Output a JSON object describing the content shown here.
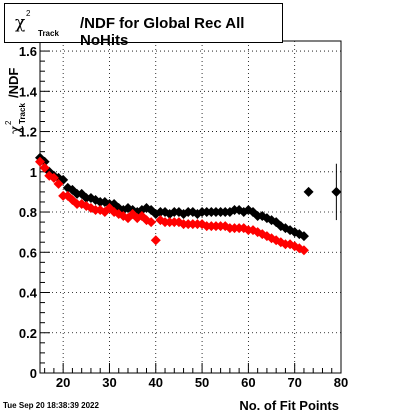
{
  "chart_data": {
    "type": "scatter",
    "title": {
      "symbol": "χ",
      "superscript": "2",
      "subscript": "Track",
      "text": "/NDF for Global Rec All NoHits"
    },
    "ylabel": {
      "symbol": "χ",
      "superscript": "2",
      "subscript": "Track",
      "text": "/NDF"
    },
    "xlabel": "No. of Fit Points",
    "timestamp": "Tue Sep 20 18:38:39 2022",
    "xlim": [
      15,
      80
    ],
    "ylim": [
      0,
      1.65
    ],
    "x_major_ticks": [
      20,
      30,
      40,
      50,
      60,
      70,
      80
    ],
    "x_minor_step": 2,
    "y_major_ticks": [
      0,
      0.2,
      0.4,
      0.6,
      0.8,
      1,
      1.2,
      1.4,
      1.6
    ],
    "y_minor_step": 0.05,
    "x_tick_labels": [
      "20",
      "30",
      "40",
      "50",
      "60",
      "70",
      "80"
    ],
    "y_tick_labels": [
      "0",
      "0.2",
      "0.4",
      "0.6",
      "0.8",
      "1",
      "1.2",
      "1.4",
      "1.6"
    ],
    "grid": true,
    "marker": "diamond",
    "series": [
      {
        "color": "#000000",
        "points": [
          [
            15,
            1.07
          ],
          [
            16,
            1.05
          ],
          [
            17,
            1.0
          ],
          [
            18,
            0.98
          ],
          [
            19,
            0.97
          ],
          [
            20,
            0.96
          ],
          [
            21,
            0.92
          ],
          [
            22,
            0.91
          ],
          [
            23,
            0.89
          ],
          [
            24,
            0.89
          ],
          [
            25,
            0.87
          ],
          [
            26,
            0.87
          ],
          [
            27,
            0.86
          ],
          [
            28,
            0.85
          ],
          [
            29,
            0.85
          ],
          [
            30,
            0.84
          ],
          [
            31,
            0.84
          ],
          [
            32,
            0.82
          ],
          [
            33,
            0.81
          ],
          [
            34,
            0.82
          ],
          [
            35,
            0.81
          ],
          [
            36,
            0.8
          ],
          [
            37,
            0.81
          ],
          [
            38,
            0.82
          ],
          [
            39,
            0.81
          ],
          [
            40,
            0.79
          ],
          [
            41,
            0.8
          ],
          [
            42,
            0.8
          ],
          [
            43,
            0.79
          ],
          [
            44,
            0.8
          ],
          [
            45,
            0.8
          ],
          [
            46,
            0.79
          ],
          [
            47,
            0.8
          ],
          [
            48,
            0.8
          ],
          [
            49,
            0.79
          ],
          [
            50,
            0.8
          ],
          [
            51,
            0.8
          ],
          [
            52,
            0.8
          ],
          [
            53,
            0.8
          ],
          [
            54,
            0.8
          ],
          [
            55,
            0.8
          ],
          [
            56,
            0.8
          ],
          [
            57,
            0.81
          ],
          [
            58,
            0.81
          ],
          [
            59,
            0.8
          ],
          [
            60,
            0.81
          ],
          [
            61,
            0.8
          ],
          [
            62,
            0.78
          ],
          [
            63,
            0.78
          ],
          [
            64,
            0.77
          ],
          [
            65,
            0.76
          ],
          [
            66,
            0.75
          ],
          [
            67,
            0.73
          ],
          [
            68,
            0.72
          ],
          [
            69,
            0.71
          ],
          [
            70,
            0.7
          ],
          [
            71,
            0.69
          ],
          [
            72,
            0.68
          ],
          [
            73,
            0.9
          ],
          [
            79,
            0.9
          ]
        ],
        "error_bars": [
          {
            "x": 79,
            "y": 0.9,
            "low": 0.76,
            "high": 1.04
          }
        ]
      },
      {
        "color": "#ff0000",
        "points": [
          [
            15,
            1.05
          ],
          [
            16,
            1.02
          ],
          [
            17,
            0.98
          ],
          [
            18,
            0.97
          ],
          [
            19,
            0.94
          ],
          [
            20,
            0.88
          ],
          [
            21,
            0.88
          ],
          [
            22,
            0.86
          ],
          [
            23,
            0.84
          ],
          [
            24,
            0.84
          ],
          [
            25,
            0.83
          ],
          [
            26,
            0.82
          ],
          [
            27,
            0.81
          ],
          [
            28,
            0.81
          ],
          [
            29,
            0.8
          ],
          [
            30,
            0.82
          ],
          [
            31,
            0.8
          ],
          [
            32,
            0.79
          ],
          [
            33,
            0.78
          ],
          [
            34,
            0.77
          ],
          [
            35,
            0.79
          ],
          [
            36,
            0.77
          ],
          [
            37,
            0.78
          ],
          [
            38,
            0.76
          ],
          [
            39,
            0.75
          ],
          [
            40,
            0.66
          ],
          [
            41,
            0.76
          ],
          [
            42,
            0.75
          ],
          [
            43,
            0.75
          ],
          [
            44,
            0.75
          ],
          [
            45,
            0.75
          ],
          [
            46,
            0.74
          ],
          [
            47,
            0.74
          ],
          [
            48,
            0.74
          ],
          [
            49,
            0.74
          ],
          [
            50,
            0.74
          ],
          [
            51,
            0.73
          ],
          [
            52,
            0.73
          ],
          [
            53,
            0.73
          ],
          [
            54,
            0.73
          ],
          [
            55,
            0.73
          ],
          [
            56,
            0.72
          ],
          [
            57,
            0.72
          ],
          [
            58,
            0.72
          ],
          [
            59,
            0.72
          ],
          [
            60,
            0.71
          ],
          [
            61,
            0.71
          ],
          [
            62,
            0.7
          ],
          [
            63,
            0.69
          ],
          [
            64,
            0.68
          ],
          [
            65,
            0.67
          ],
          [
            66,
            0.66
          ],
          [
            67,
            0.65
          ],
          [
            68,
            0.64
          ],
          [
            69,
            0.64
          ],
          [
            70,
            0.63
          ],
          [
            71,
            0.62
          ],
          [
            72,
            0.61
          ]
        ]
      }
    ]
  }
}
